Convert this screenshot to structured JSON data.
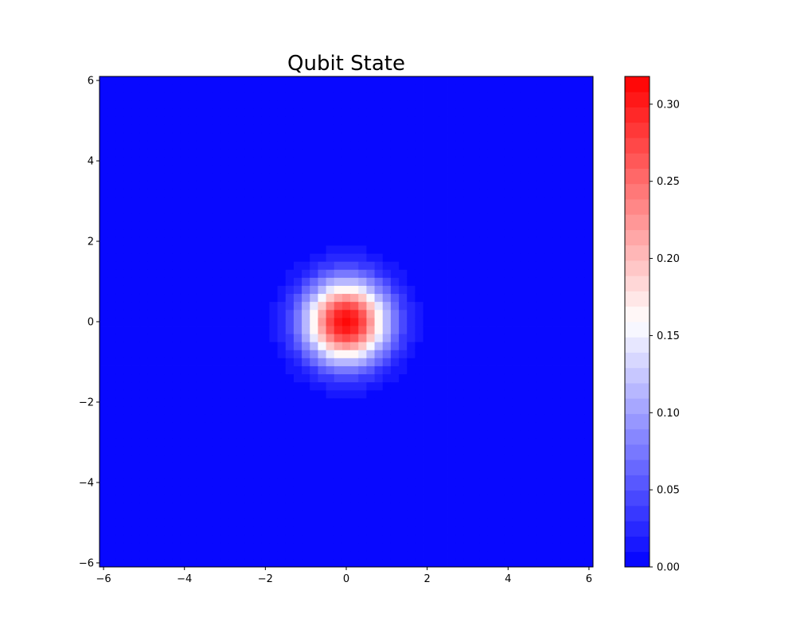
{
  "chart_data": {
    "type": "heatmap",
    "title": "Qubit State",
    "xlabel": "",
    "ylabel": "",
    "xlim": [
      -6.1,
      6.1
    ],
    "ylim": [
      -6.1,
      6.1
    ],
    "x_ticks": [
      -6,
      -4,
      -2,
      0,
      2,
      4,
      6
    ],
    "y_ticks": [
      -6,
      -4,
      -2,
      0,
      2,
      4,
      6
    ],
    "x_tick_labels": [
      "−6",
      "−4",
      "−2",
      "0",
      "2",
      "4",
      "6"
    ],
    "y_tick_labels": [
      "−6",
      "−4",
      "−2",
      "0",
      "2",
      "4",
      "6"
    ],
    "grid": false,
    "grid_x_range": [
      -6.1,
      6.1
    ],
    "grid_y_range": [
      -6.1,
      6.1
    ],
    "grid_n": 61,
    "distribution": "gaussian",
    "center": [
      0,
      0
    ],
    "sigma": 0.707,
    "peak_value": 0.318,
    "colorbar": {
      "min": 0.0,
      "max": 0.318,
      "ticks": [
        0.0,
        0.05,
        0.1,
        0.15,
        0.2,
        0.25,
        0.3
      ],
      "tick_labels": [
        "0.00",
        "0.05",
        "0.10",
        "0.15",
        "0.20",
        "0.25",
        "0.30"
      ],
      "levels": 32,
      "low_color": "#0000ff",
      "mid_color": "#ffffff",
      "high_color": "#ff0000",
      "mid_value": 0.159,
      "placement": "right"
    }
  }
}
